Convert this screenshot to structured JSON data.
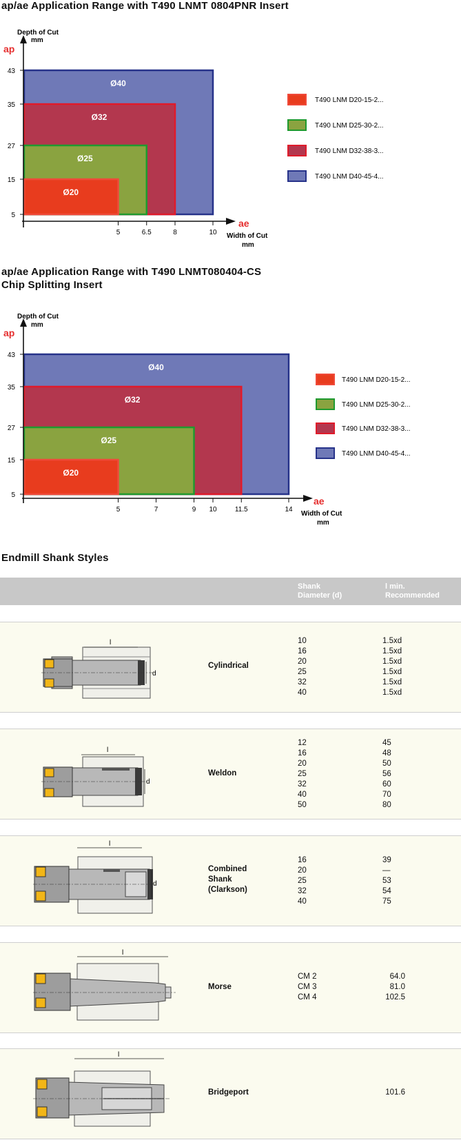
{
  "chart1": {
    "title": "ap/ae Application Range with T490 LNMT 0804PNR Insert",
    "y_symbol": "ap",
    "y_label_line1": "Depth of Cut",
    "y_label_line2": "mm",
    "x_symbol": "ae",
    "x_label_line1": "Width of Cut",
    "x_label_line2": "mm",
    "legend": [
      "T490 LNM D20-15-2...",
      "T490 LNM D25-30-2...",
      "T490 LNM D32-38-3...",
      "T490 LNM D40-45-4..."
    ],
    "y_ticks": [
      "43",
      "35",
      "27",
      "15",
      "5"
    ],
    "x_ticks": [
      "5",
      "6.5",
      "8",
      "10"
    ]
  },
  "chart2": {
    "title_line1": "ap/ae Application Range with T490 LNMT080404-CS",
    "title_line2": "Chip Splitting Insert",
    "y_symbol": "ap",
    "y_label_line1": "Depth of Cut",
    "y_label_line2": "mm",
    "x_symbol": "ae",
    "x_label_line1": "Width of Cut",
    "x_label_line2": "mm",
    "legend": [
      "T490 LNM D20-15-2...",
      "T490 LNM D25-30-2...",
      "T490 LNM D32-38-3...",
      "T490 LNM D40-45-4..."
    ],
    "y_ticks": [
      "43",
      "35",
      "27",
      "15",
      "5"
    ],
    "x_ticks": [
      "5",
      "7",
      "9",
      "10",
      "11.5",
      "14"
    ]
  },
  "chart_data": [
    {
      "type": "area",
      "title": "ap/ae Application Range with T490 LNMT 0804PNR Insert",
      "xlabel": "Width of Cut mm",
      "ylabel": "Depth of Cut mm",
      "series": [
        {
          "name": "Ø40",
          "ae_max": 10,
          "ap_max": 43,
          "color": "#6f79b7",
          "border": "#27338a"
        },
        {
          "name": "Ø32",
          "ae_max": 8,
          "ap_max": 35,
          "color": "#b3374e",
          "border": "#e01a2a"
        },
        {
          "name": "Ø25",
          "ae_max": 6.5,
          "ap_max": 27,
          "color": "#8aa340",
          "border": "#1f9a2f"
        },
        {
          "name": "Ø20",
          "ae_max": 5,
          "ap_max": 15,
          "color": "#e83c1e",
          "border": "#f04a3a"
        }
      ]
    },
    {
      "type": "area",
      "title": "ap/ae Application Range with T490 LNMT080404-CS Chip Splitting Insert",
      "xlabel": "Width of Cut mm",
      "ylabel": "Depth of Cut mm",
      "series": [
        {
          "name": "Ø40",
          "ae_max": 14,
          "ap_max": 43,
          "color": "#6f79b7",
          "border": "#27338a"
        },
        {
          "name": "Ø32",
          "ae_max": 11.5,
          "ap_max": 35,
          "color": "#b3374e",
          "border": "#e01a2a"
        },
        {
          "name": "Ø25",
          "ae_max": 9,
          "ap_max": 27,
          "color": "#8aa340",
          "border": "#1f9a2f"
        },
        {
          "name": "Ø20",
          "ae_max": 5,
          "ap_max": 15,
          "color": "#e83c1e",
          "border": "#f04a3a"
        }
      ]
    }
  ],
  "shank": {
    "title": "Endmill Shank Styles",
    "col_d_line1": "Shank",
    "col_d_line2": "Diameter (d)",
    "col_l_line1": "l min.",
    "col_l_line2": "Recommended",
    "rows": [
      {
        "name_lines": [
          "Cylindrical"
        ],
        "d": [
          "10",
          "16",
          "20",
          "25",
          "32",
          "40"
        ],
        "l": [
          "1.5xd",
          "1.5xd",
          "1.5xd",
          "1.5xd",
          "1.5xd",
          "1.5xd"
        ],
        "dim_l": "l",
        "dim_d": "d"
      },
      {
        "name_lines": [
          "Weldon"
        ],
        "d": [
          "12",
          "16",
          "20",
          "25",
          "32",
          "40",
          "50"
        ],
        "l": [
          "45",
          "48",
          "50",
          "56",
          "60",
          "70",
          "80"
        ],
        "dim_l": "l",
        "dim_d": "d"
      },
      {
        "name_lines": [
          "Combined",
          "Shank",
          "(Clarkson)"
        ],
        "d": [
          "16",
          "20",
          "25",
          "32",
          "40"
        ],
        "l": [
          "39",
          "—",
          "53",
          "54",
          "75"
        ],
        "dim_l": "l",
        "dim_d": "d"
      },
      {
        "name_lines": [
          "Morse"
        ],
        "d": [
          "CM 2",
          "CM 3",
          "CM 4"
        ],
        "l": [
          "64.0",
          "81.0",
          "102.5"
        ],
        "dim_l": "l"
      },
      {
        "name_lines": [
          "Bridgeport"
        ],
        "d": [],
        "l": [
          "101.6"
        ],
        "dim_l": "l"
      }
    ]
  }
}
